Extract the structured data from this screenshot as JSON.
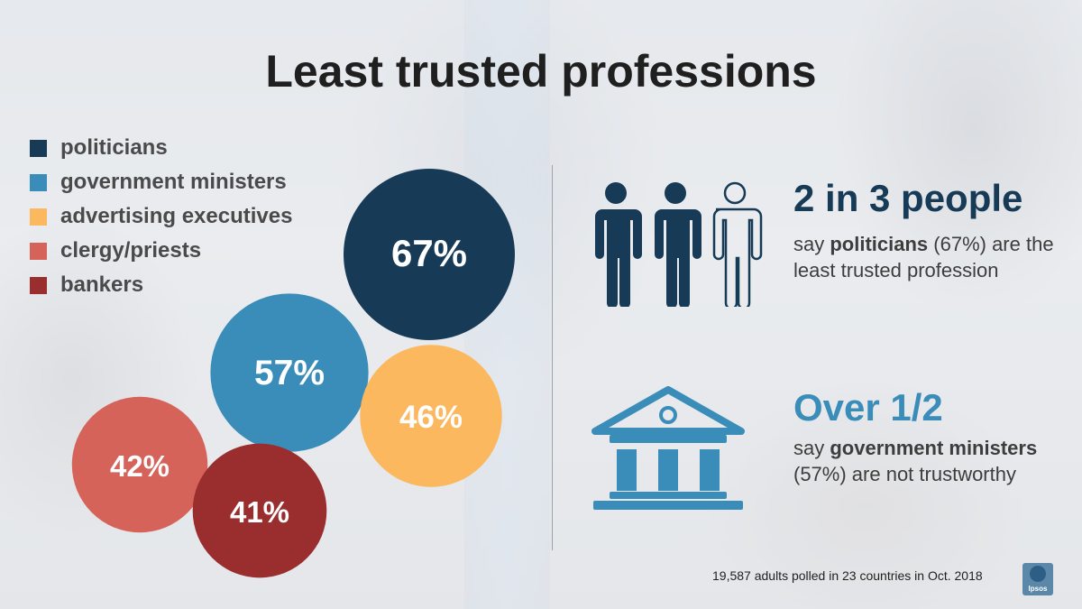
{
  "title": "Least trusted professions",
  "chart_data": {
    "type": "bubble",
    "series": [
      {
        "name": "politicians",
        "value": 67,
        "label": "67%",
        "color": "#173a56"
      },
      {
        "name": "government ministers",
        "value": 57,
        "label": "57%",
        "color": "#3a8db8"
      },
      {
        "name": "advertising executives",
        "value": 46,
        "label": "46%",
        "color": "#fbb85e"
      },
      {
        "name": "clergy/priests",
        "value": 42,
        "label": "42%",
        "color": "#d6635a"
      },
      {
        "name": "bankers",
        "value": 41,
        "label": "41%",
        "color": "#9a2e2e"
      }
    ],
    "legend_position": "top-left"
  },
  "stats": [
    {
      "headline": "2 in 3 people",
      "body_pre": "say ",
      "body_bold": "politicians",
      "body_post": " (67%) are the least trusted profession",
      "icon": "people-icon",
      "people_filled": 2,
      "people_total": 3
    },
    {
      "headline": "Over 1/2",
      "body_pre": "say ",
      "body_bold": "government ministers",
      "body_post": " (57%) are not trustworthy",
      "icon": "government-building-icon"
    }
  ],
  "footnote": "19,587 adults polled in 23 countries in Oct. 2018",
  "brand": {
    "logo_text": "Ipsos"
  }
}
